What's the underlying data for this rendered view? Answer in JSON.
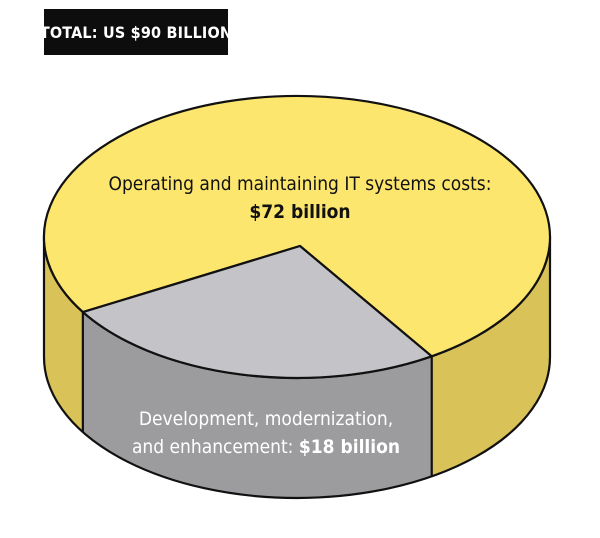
{
  "header": {
    "total_label": "TOTAL: US $90 BILLION"
  },
  "chart_data": {
    "type": "pie",
    "total": 90,
    "unit": "US $ billion",
    "slices": [
      {
        "label": "Operating and maintaining IT systems costs:",
        "value_label": "$72 billion",
        "value": 72,
        "color": "#fde66e",
        "side_color": "#d9c258"
      },
      {
        "label": "Development, modernization, and enhancement:",
        "value_label": "$18 billion",
        "value": 18,
        "color": "#c4c4c8",
        "side_color": "#9c9c9f"
      }
    ],
    "legend": "none"
  }
}
